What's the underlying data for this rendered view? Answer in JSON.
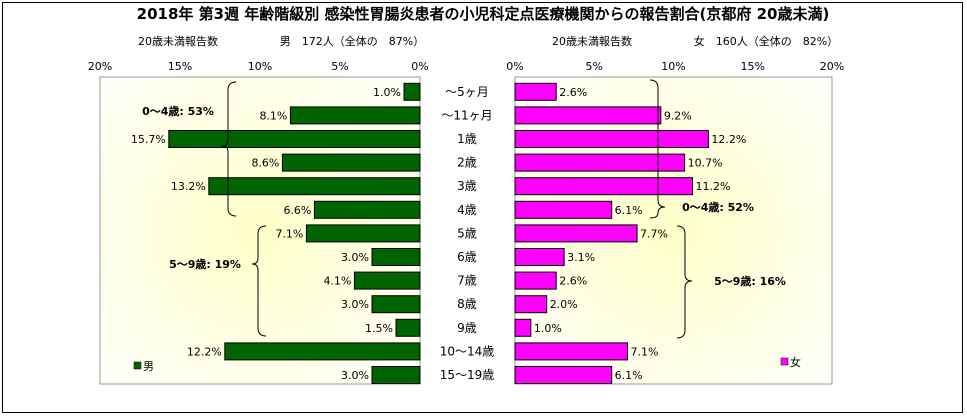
{
  "chart_data": {
    "type": "bar",
    "title": "2018年 第3週 年齢階級別 感染性胃腸炎患者の小児科定点医療機関からの報告割合(京都府 20歳未満)",
    "categories": [
      "～5ヶ月",
      "～11ヶ月",
      "1歳",
      "2歳",
      "3歳",
      "4歳",
      "5歳",
      "6歳",
      "7歳",
      "8歳",
      "9歳",
      "10～14歳",
      "15～19歳"
    ],
    "ticks": [
      "20%",
      "15%",
      "10%",
      "5%",
      "0%"
    ],
    "ticks_right": [
      "0%",
      "5%",
      "10%",
      "15%",
      "20%"
    ],
    "xlim": [
      0,
      20
    ],
    "male": {
      "header_label": "20歳未満報告数",
      "header_value": "男　172人（全体の　87%）",
      "legend": "男",
      "color": "#006400",
      "values": [
        1.0,
        8.1,
        15.7,
        8.6,
        13.2,
        6.6,
        7.1,
        3.0,
        4.1,
        3.0,
        1.5,
        12.2,
        3.0
      ],
      "labels": [
        "1.0%",
        "8.1%",
        "15.7%",
        "8.6%",
        "13.2%",
        "6.6%",
        "7.1%",
        "3.0%",
        "4.1%",
        "3.0%",
        "1.5%",
        "12.2%",
        "3.0%"
      ],
      "group_0_4": "0～4歳: 53%",
      "group_5_9": "5～9歳: 19%"
    },
    "female": {
      "header_label": "20歳未満報告数",
      "header_value": "女　160人（全体の　82%）",
      "legend": "女",
      "color": "#ff00ff",
      "values": [
        2.6,
        9.2,
        12.2,
        10.7,
        11.2,
        6.1,
        7.7,
        3.1,
        2.6,
        2.0,
        1.0,
        7.1,
        6.1
      ],
      "labels": [
        "2.6%",
        "9.2%",
        "12.2%",
        "10.7%",
        "11.2%",
        "6.1%",
        "7.7%",
        "3.1%",
        "2.6%",
        "2.0%",
        "1.0%",
        "7.1%",
        "6.1%"
      ],
      "group_0_4": "0～4歳: 52%",
      "group_5_9": "5～9歳: 16%"
    }
  }
}
